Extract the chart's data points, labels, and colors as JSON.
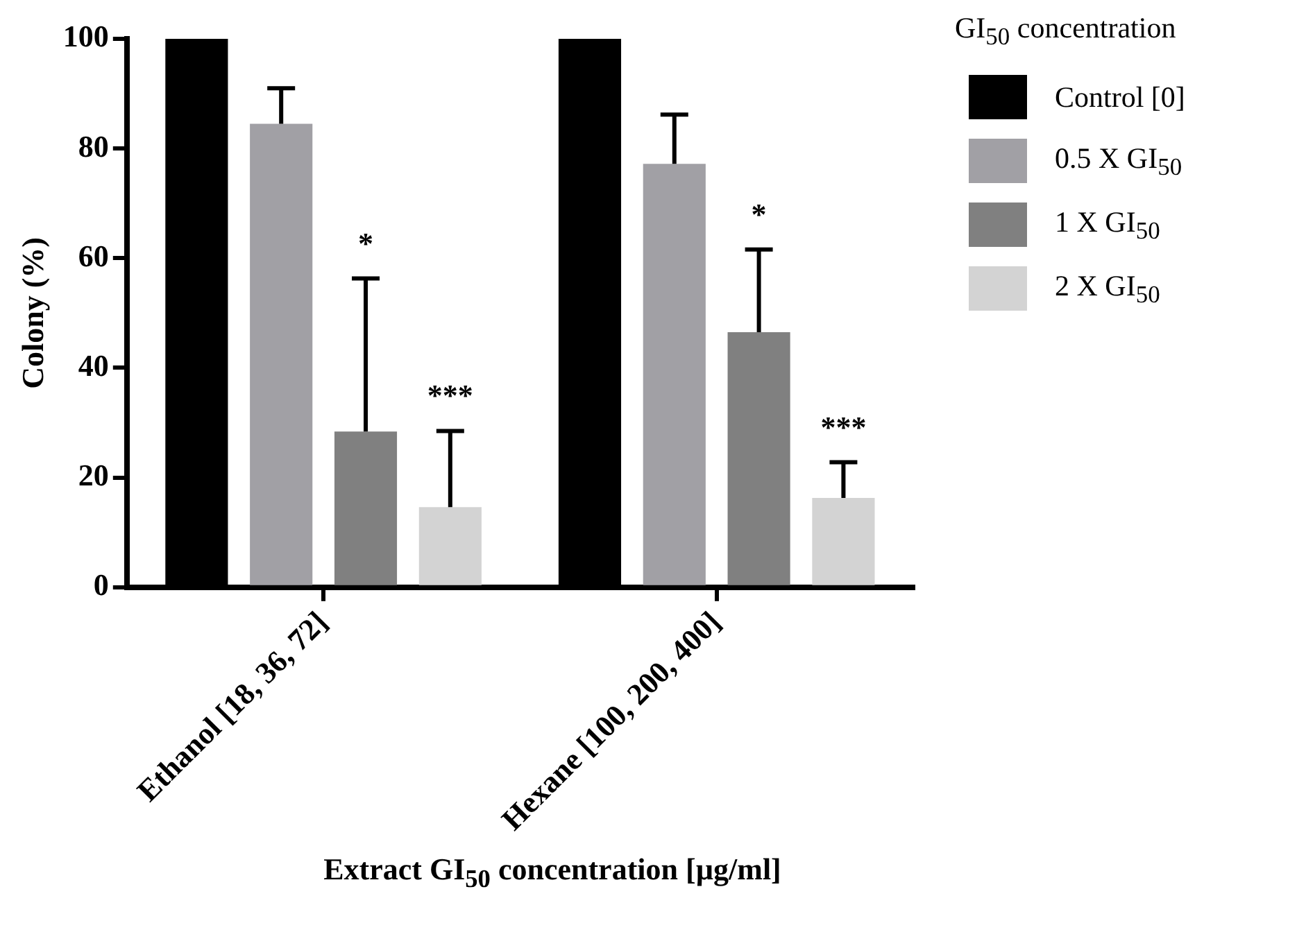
{
  "chart_data": {
    "type": "bar",
    "xlabel": "Extract GI$_{50}$ concentration [µg/ml]",
    "ylabel": "Colony (%)",
    "legend_title": "GI$_{50}$ concentration",
    "categories": [
      "Ethanol [18, 36, 72]",
      "Hexane [100, 200, 400]"
    ],
    "series": [
      {
        "name": "Control [0]",
        "color": "#000000",
        "values": [
          100,
          100
        ]
      },
      {
        "name": "0.5 X GI$_{50}$",
        "color": "#a1a0a5",
        "values": [
          84.5,
          77.2
        ],
        "errors": [
          [
            84.5,
            91
          ],
          [
            77.2,
            86.2
          ]
        ]
      },
      {
        "name": "1 X GI$_{50}$",
        "color": "#808080",
        "values": [
          28.4,
          46.5
        ],
        "errors": [
          [
            28.4,
            56.3
          ],
          [
            46.5,
            61.6
          ]
        ]
      },
      {
        "name": "2 X GI$_{50}$",
        "color": "#d3d3d3",
        "values": [
          14.6,
          16.3
        ],
        "errors": [
          [
            14.6,
            28.5
          ],
          [
            16.3,
            22.8
          ]
        ]
      }
    ],
    "ylim": [
      0,
      100
    ],
    "yticks": [
      0,
      20,
      40,
      60,
      80,
      100
    ],
    "grid": false,
    "legend": "top right",
    "annotations": [
      "*",
      "***",
      "*",
      "***"
    ]
  }
}
